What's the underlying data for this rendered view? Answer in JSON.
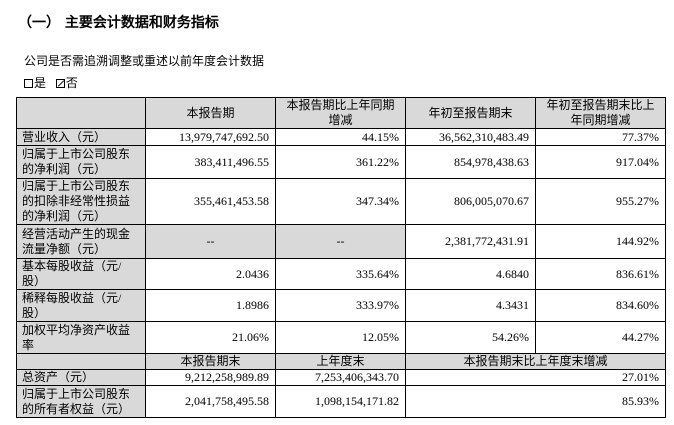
{
  "title": "（一） 主要会计数据和财务指标",
  "question": "公司是否需追溯调整或重述以前年度会计数据",
  "options": [
    {
      "label": "是",
      "checked": false
    },
    {
      "label": "否",
      "checked": true
    }
  ],
  "headers": [
    "",
    "本报告期",
    "本报告期比上年同期增减",
    "年初至报告期末",
    "年初至报告期末比上年同期增减"
  ],
  "rows": [
    {
      "label": "营业收入（元）",
      "values": [
        "13,979,747,692.50",
        "44.15%",
        "36,562,310,483.49",
        "77.37%"
      ]
    },
    {
      "label": "归属于上市公司股东的净利润（元）",
      "values": [
        "383,411,496.55",
        "361.22%",
        "854,978,438.63",
        "917.04%"
      ]
    },
    {
      "label": "归属于上市公司股东的扣除非经常性损益的净利润（元）",
      "values": [
        "355,461,453.58",
        "347.34%",
        "806,005,070.67",
        "955.27%"
      ]
    },
    {
      "label": "经营活动产生的现金流量净额（元）",
      "values": [
        "--",
        "--",
        "2,381,772,431.91",
        "144.92%"
      ]
    },
    {
      "label": "基本每股收益（元/股）",
      "values": [
        "2.0436",
        "335.64%",
        "4.6840",
        "836.61%"
      ]
    },
    {
      "label": "稀释每股收益（元/股）",
      "values": [
        "1.8986",
        "333.97%",
        "4.3431",
        "834.60%"
      ]
    },
    {
      "label": "加权平均净资产收益率",
      "values": [
        "21.06%",
        "12.05%",
        "54.26%",
        "44.27%"
      ]
    }
  ],
  "headers2": [
    "",
    "本报告期末",
    "上年度末",
    "本报告期末比上年度末增减"
  ],
  "rows2": [
    {
      "label": "总资产（元）",
      "values": [
        "9,212,258,989.89",
        "7,253,406,343.70",
        "27.01%"
      ]
    },
    {
      "label": "归属于上市公司股东的所有者权益（元）",
      "values": [
        "2,041,758,495.58",
        "1,098,154,171.82",
        "85.93%"
      ]
    }
  ]
}
